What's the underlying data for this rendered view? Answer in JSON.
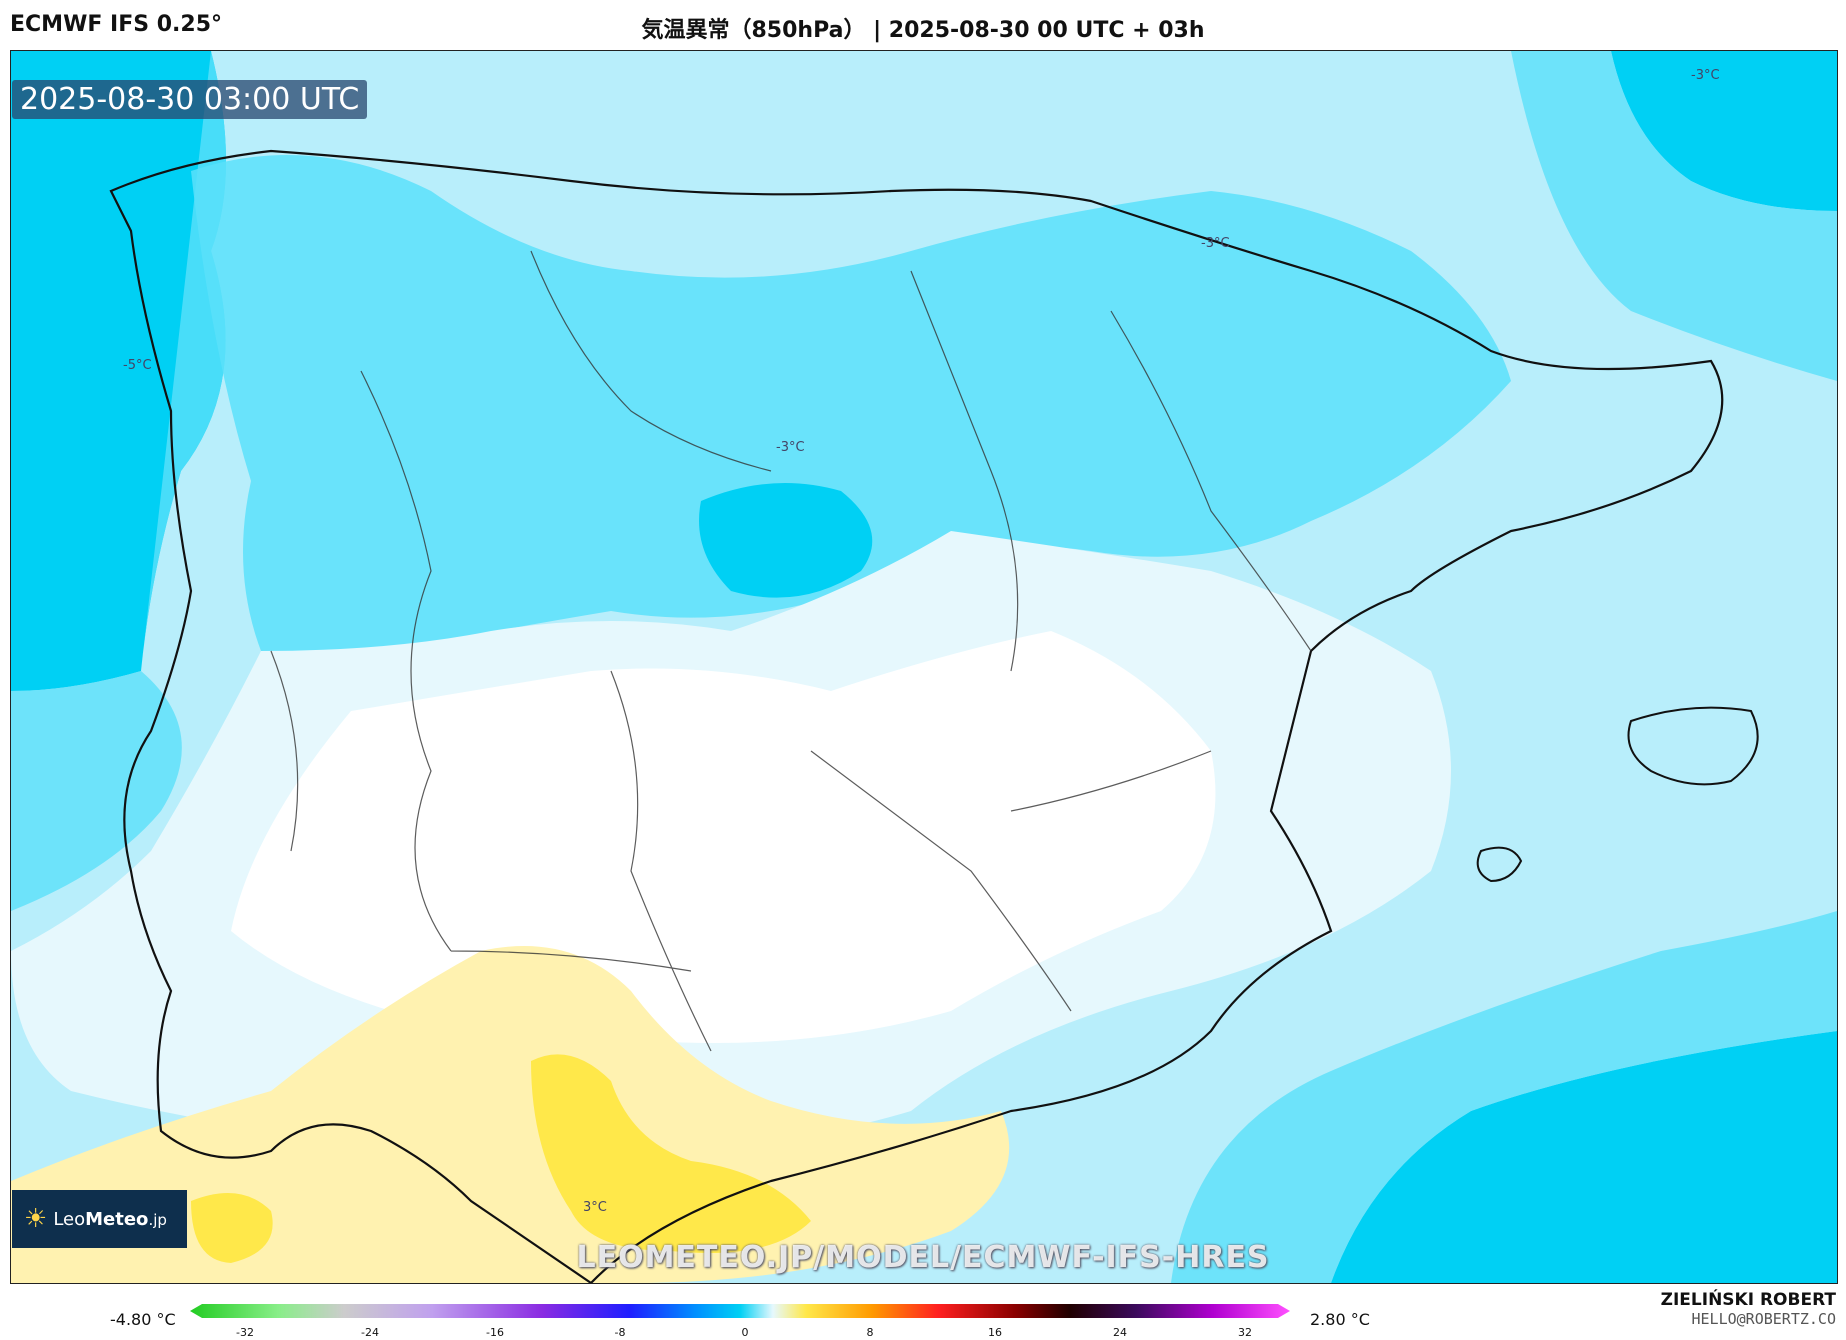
{
  "header": {
    "model": "ECMWF IFS 0.25°",
    "title": "気温異常（850hPa） | 2025-08-30 00 UTC + 03h"
  },
  "map": {
    "timestamp": "2025-08-30 03:00 UTC",
    "watermark": "LEOMETEO.JP/MODEL/ECMWF-IFS-HRES",
    "contour_labels": [
      "-5°C",
      "-3°C",
      "-3°C",
      "-3°C",
      "3°C"
    ],
    "colors": {
      "deep_cyan": "#00d0f4",
      "mid_cyan": "#5ae0fa",
      "light_cyan": "#b8eefb",
      "pale": "#e6f8fd",
      "white": "#ffffff",
      "pale_yellow": "#fff2b0",
      "yellow": "#ffe84a"
    }
  },
  "logo": {
    "brand_light": "Leo",
    "brand_bold": "Meteo",
    "suffix": ".jp"
  },
  "legend": {
    "min_label": "-4.80 °C",
    "max_label": "2.80 °C",
    "ticks": [
      "-32",
      "-24",
      "-16",
      "-8",
      "0",
      "8",
      "16",
      "24",
      "32"
    ]
  },
  "credit": {
    "name": "ZIELIŃSKI ROBERT",
    "email": "HELLO@ROBERTZ.CO"
  }
}
